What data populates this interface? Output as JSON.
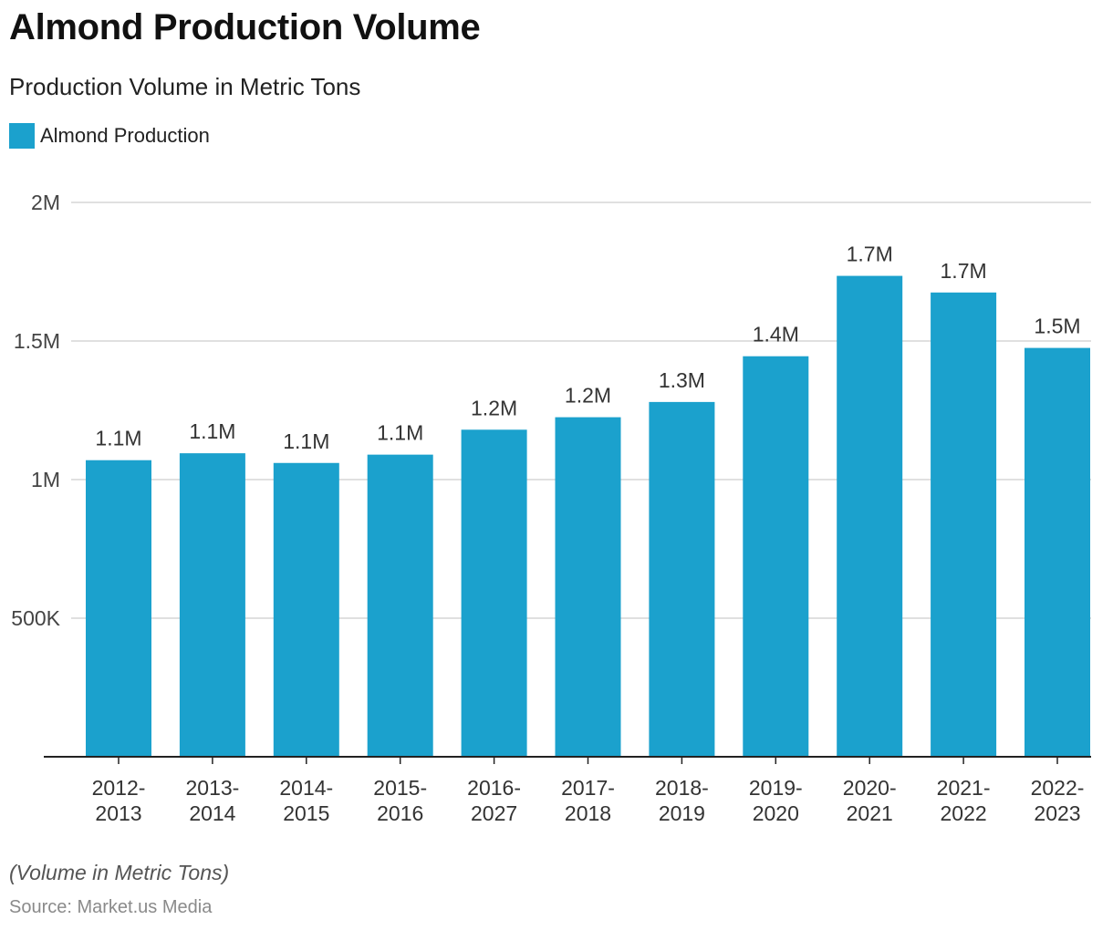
{
  "chart_data": {
    "type": "bar",
    "title": "Almond Production Volume",
    "subtitle": "Production Volume in Metric Tons",
    "legend": [
      {
        "name": "Almond Production",
        "color": "#1ba1cd"
      }
    ],
    "categories": [
      [
        "2012-",
        "2013"
      ],
      [
        "2013-",
        "2014"
      ],
      [
        "2014-",
        "2015"
      ],
      [
        "2015-",
        "2016"
      ],
      [
        "2016-",
        "2027"
      ],
      [
        "2017-",
        "2018"
      ],
      [
        "2018-",
        "2019"
      ],
      [
        "2019-",
        "2020"
      ],
      [
        "2020-",
        "2021"
      ],
      [
        "2021-",
        "2022"
      ],
      [
        "2022-",
        "2023"
      ]
    ],
    "series": [
      {
        "name": "Almond Production",
        "values": [
          1070000,
          1095000,
          1060000,
          1090000,
          1180000,
          1225000,
          1280000,
          1445000,
          1735000,
          1675000,
          1475000
        ],
        "labels": [
          "1.1M",
          "1.1M",
          "1.1M",
          "1.1M",
          "1.2M",
          "1.2M",
          "1.3M",
          "1.4M",
          "1.7M",
          "1.7M",
          "1.5M"
        ]
      }
    ],
    "y_ticks": [
      {
        "value": 500000,
        "label": "500K"
      },
      {
        "value": 1000000,
        "label": "1M"
      },
      {
        "value": 1500000,
        "label": "1.5M"
      },
      {
        "value": 2000000,
        "label": "2M"
      }
    ],
    "ylim": [
      0,
      2000000
    ],
    "grid": true,
    "legend_position": "top-left",
    "bar_color": "#1ba1cd",
    "grid_color": "#d6d6d6",
    "axis_color": "#222222"
  },
  "footnote": "(Volume in Metric Tons)",
  "source": "Source: Market.us Media"
}
